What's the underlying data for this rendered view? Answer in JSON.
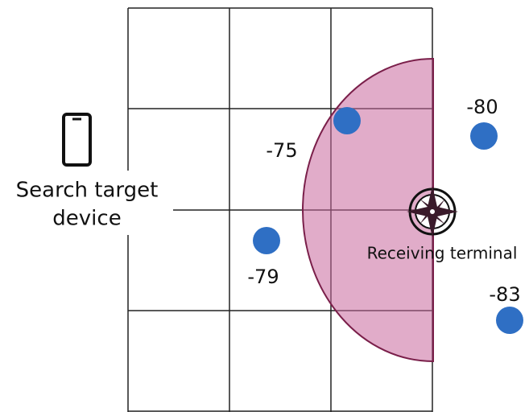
{
  "target": {
    "label_line1": "Search target",
    "label_line2": "device"
  },
  "receiver": {
    "label": "Receiving terminal"
  },
  "readings": [
    "-75",
    "-79",
    "-80",
    "-83"
  ]
}
